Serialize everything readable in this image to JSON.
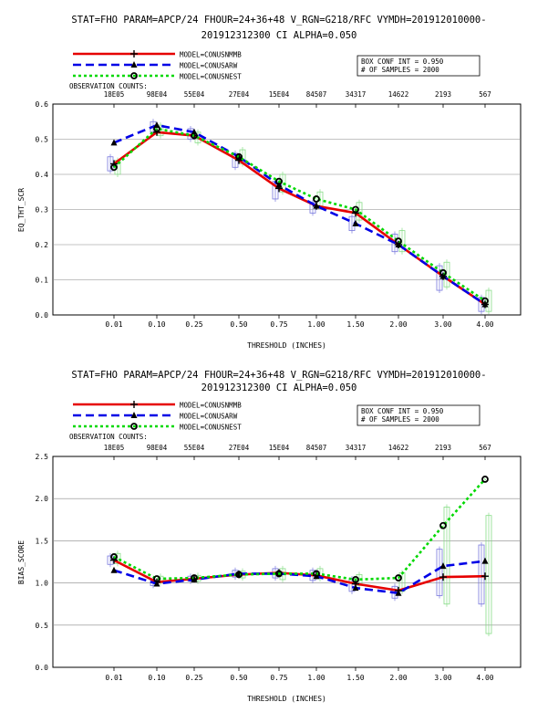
{
  "chart_data": [
    {
      "type": "line",
      "title_line1": "STAT=FHO PARAM=APCP/24 FHOUR=24+36+48 V_RGN=G218/RFC VYMDH=201912010000-",
      "title_line2": "201912312300 CI ALPHA=0.050",
      "xlabel": "THRESHOLD (INCHES)",
      "ylabel": "EQ_THT_SCR",
      "ylim": [
        0,
        0.6
      ],
      "yticks": [
        "0.0",
        "0.1",
        "0.2",
        "0.3",
        "0.4",
        "0.5",
        "0.6"
      ],
      "categories": [
        "0.01",
        "0.10",
        "0.25",
        "0.50",
        "0.75",
        "1.00",
        "1.50",
        "2.00",
        "3.00",
        "4.00"
      ],
      "obs_counts_label": "OBSERVATION COUNTS:",
      "obs_counts": [
        "18E05",
        "98E04",
        "55E04",
        "27E04",
        "15E04",
        "84507",
        "34317",
        "14622",
        "2193",
        "567"
      ],
      "box_text": [
        "BOX CONF INT = 0.950",
        "# OF SAMPLES =  2000"
      ],
      "legend_placement": "top-left",
      "grid": true,
      "series": [
        {
          "name": "MODEL=CONUSNMMB",
          "color": "#e60000",
          "dash": "solid",
          "marker": "plus",
          "values": [
            0.43,
            0.52,
            0.51,
            0.44,
            0.36,
            0.31,
            0.29,
            0.2,
            0.11,
            0.03
          ]
        },
        {
          "name": "MODEL=CONUSARW",
          "color": "#0000e6",
          "dash": "dash",
          "marker": "triangle",
          "values": [
            0.49,
            0.54,
            0.52,
            0.45,
            0.37,
            0.31,
            0.26,
            0.2,
            0.11,
            0.03
          ]
        },
        {
          "name": "MODEL=CONUSNEST",
          "color": "#00d800",
          "dash": "dot",
          "marker": "circle",
          "values": [
            0.42,
            0.53,
            0.51,
            0.45,
            0.38,
            0.33,
            0.3,
            0.21,
            0.12,
            0.04
          ]
        }
      ],
      "boxes": [
        {
          "color": "#7777dd",
          "ranges": [
            [
              0.41,
              0.45
            ],
            [
              0.52,
              0.55
            ],
            [
              0.5,
              0.53
            ],
            [
              0.42,
              0.46
            ],
            [
              0.33,
              0.38
            ],
            [
              0.29,
              0.32
            ],
            [
              0.24,
              0.28
            ],
            [
              0.18,
              0.23
            ],
            [
              0.07,
              0.14
            ],
            [
              0.01,
              0.05
            ]
          ]
        },
        {
          "color": "#88dd88",
          "ranges": [
            [
              0.4,
              0.44
            ],
            [
              0.51,
              0.54
            ],
            [
              0.49,
              0.52
            ],
            [
              0.43,
              0.47
            ],
            [
              0.35,
              0.4
            ],
            [
              0.31,
              0.35
            ],
            [
              0.27,
              0.32
            ],
            [
              0.18,
              0.24
            ],
            [
              0.08,
              0.15
            ],
            [
              0.01,
              0.07
            ]
          ]
        }
      ]
    },
    {
      "type": "line",
      "title_line1": "STAT=FHO PARAM=APCP/24 FHOUR=24+36+48 V_RGN=G218/RFC VYMDH=201912010000-",
      "title_line2": "201912312300 CI ALPHA=0.050",
      "xlabel": "THRESHOLD (INCHES)",
      "ylabel": "BIAS_SCORE",
      "ylim": [
        0,
        2.5
      ],
      "yticks": [
        "0.0",
        "0.5",
        "1.0",
        "1.5",
        "2.0",
        "2.5"
      ],
      "categories": [
        "0.01",
        "0.10",
        "0.25",
        "0.50",
        "0.75",
        "1.00",
        "1.50",
        "2.00",
        "3.00",
        "4.00"
      ],
      "obs_counts_label": "OBSERVATION COUNTS:",
      "obs_counts": [
        "18E05",
        "98E04",
        "55E04",
        "27E04",
        "15E04",
        "84507",
        "34317",
        "14622",
        "2193",
        "567"
      ],
      "box_text": [
        "BOX CONF INT = 0.950",
        "# OF SAMPLES =  2000"
      ],
      "legend_placement": "top-left",
      "grid": true,
      "series": [
        {
          "name": "MODEL=CONUSNMMB",
          "color": "#e60000",
          "dash": "solid",
          "marker": "plus",
          "values": [
            1.27,
            1.01,
            1.05,
            1.1,
            1.12,
            1.09,
            0.99,
            0.91,
            1.07,
            1.08
          ]
        },
        {
          "name": "MODEL=CONUSARW",
          "color": "#0000e6",
          "dash": "dash",
          "marker": "triangle",
          "values": [
            1.15,
            0.99,
            1.04,
            1.11,
            1.11,
            1.08,
            0.94,
            0.88,
            1.2,
            1.26
          ]
        },
        {
          "name": "MODEL=CONUSNEST",
          "color": "#00d800",
          "dash": "dot",
          "marker": "circle",
          "values": [
            1.31,
            1.05,
            1.06,
            1.1,
            1.11,
            1.11,
            1.04,
            1.06,
            1.68,
            2.23
          ]
        }
      ],
      "boxes": [
        {
          "color": "#7777dd",
          "ranges": [
            [
              1.22,
              1.32
            ],
            [
              0.97,
              1.04
            ],
            [
              1.02,
              1.08
            ],
            [
              1.07,
              1.15
            ],
            [
              1.06,
              1.17
            ],
            [
              1.03,
              1.15
            ],
            [
              0.9,
              1.05
            ],
            [
              0.82,
              0.96
            ],
            [
              0.85,
              1.4
            ],
            [
              0.75,
              1.45
            ]
          ]
        },
        {
          "color": "#88dd88",
          "ranges": [
            [
              1.23,
              1.35
            ],
            [
              1.0,
              1.08
            ],
            [
              1.02,
              1.09
            ],
            [
              1.06,
              1.14
            ],
            [
              1.04,
              1.17
            ],
            [
              1.05,
              1.17
            ],
            [
              0.97,
              1.1
            ],
            [
              0.9,
              1.12
            ],
            [
              0.75,
              1.9
            ],
            [
              0.4,
              1.8
            ]
          ]
        }
      ]
    }
  ]
}
